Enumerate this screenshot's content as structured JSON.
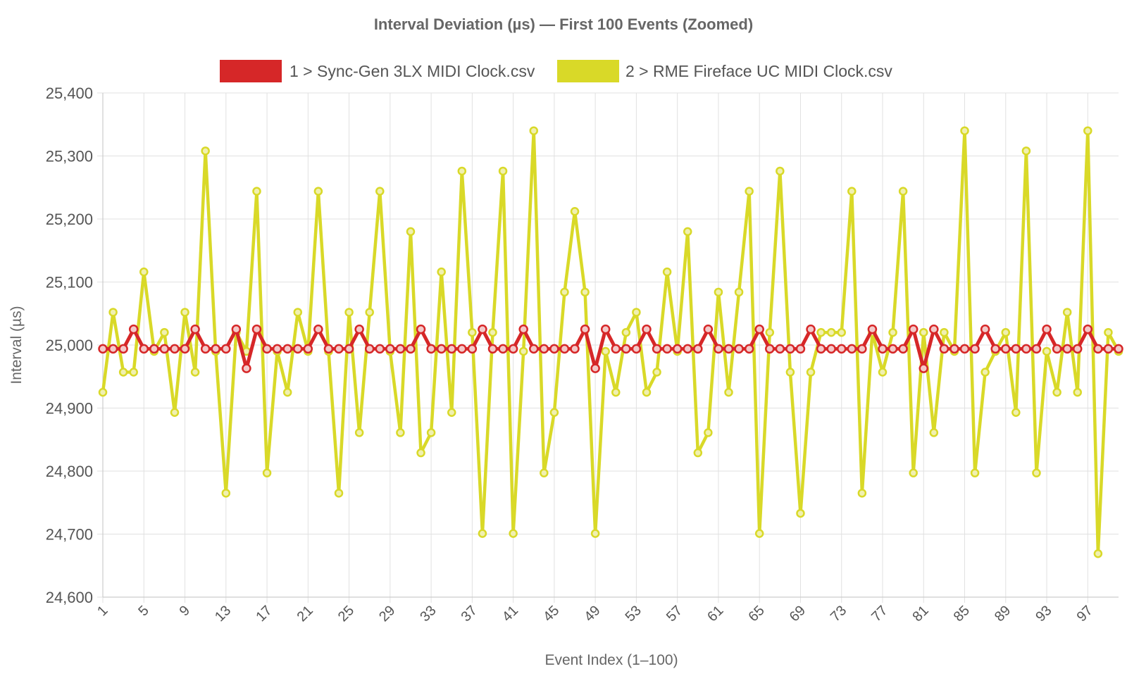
{
  "chart_data": {
    "type": "line",
    "title": "Interval Deviation (µs) — First 100 Events (Zoomed)",
    "xlabel": "Event Index (1–100)",
    "ylabel": "Interval (µs)",
    "ylim": [
      24600,
      25400
    ],
    "yticks": [
      24600,
      24700,
      24800,
      24900,
      25000,
      25100,
      25200,
      25300,
      25400
    ],
    "ytick_labels": [
      "24,600",
      "24,700",
      "24,800",
      "24,900",
      "25,000",
      "25,100",
      "25,200",
      "25,300",
      "25,400"
    ],
    "xlim": [
      1,
      100
    ],
    "xticks": [
      1,
      5,
      9,
      13,
      17,
      21,
      25,
      29,
      33,
      37,
      41,
      45,
      49,
      53,
      57,
      61,
      65,
      69,
      73,
      77,
      81,
      85,
      89,
      93,
      97
    ],
    "grid": true,
    "legend_position": "top-center",
    "series": [
      {
        "name": "1 > Sync-Gen 3LX MIDI Clock.csv",
        "color": "#d62728",
        "values": [
          24994,
          24994,
          24994,
          25025,
          24994,
          24994,
          24994,
          24994,
          24994,
          25025,
          24994,
          24994,
          24994,
          25025,
          24963,
          25025,
          24994,
          24994,
          24994,
          24994,
          24994,
          25025,
          24994,
          24994,
          24994,
          25025,
          24994,
          24994,
          24994,
          24994,
          24994,
          25025,
          24994,
          24994,
          24994,
          24994,
          24994,
          25025,
          24994,
          24994,
          24994,
          25025,
          24994,
          24994,
          24994,
          24994,
          24994,
          25025,
          24963,
          25025,
          24994,
          24994,
          24994,
          25025,
          24994,
          24994,
          24994,
          24994,
          24994,
          25025,
          24994,
          24994,
          24994,
          24994,
          25025,
          24994,
          24994,
          24994,
          24994,
          25025,
          24994,
          24994,
          24994,
          24994,
          24994,
          25025,
          24994,
          24994,
          24994,
          25025,
          24963,
          25025,
          24994,
          24994,
          24994,
          24994,
          25025,
          24994,
          24994,
          24994,
          24994,
          24994,
          25025,
          24994,
          24994,
          24994,
          25025,
          24994,
          24994,
          24994
        ]
      },
      {
        "name": "2 > RME Fireface UC MIDI Clock.csv",
        "color": "#d9d928",
        "values": [
          24925,
          25052,
          24957,
          24957,
          25116,
          24990,
          25020,
          24893,
          25052,
          24957,
          25308,
          24990,
          24765,
          25020,
          24990,
          25244,
          24797,
          24990,
          24925,
          25052,
          24990,
          25244,
          24990,
          24765,
          25052,
          24861,
          25052,
          25244,
          24990,
          24861,
          25180,
          24829,
          24861,
          25116,
          24893,
          25276,
          25020,
          24701,
          25020,
          25276,
          24701,
          24990,
          25340,
          24797,
          24893,
          25084,
          25212,
          25084,
          24701,
          24990,
          24925,
          25020,
          25052,
          24925,
          24957,
          25116,
          24990,
          25180,
          24829,
          24861,
          25084,
          24925,
          25084,
          25244,
          24701,
          25020,
          25276,
          24957,
          24733,
          24957,
          25020,
          25020,
          25020,
          25244,
          24765,
          25020,
          24957,
          25020,
          25244,
          24797,
          25020,
          24861,
          25020,
          24990,
          25340,
          24797,
          24957,
          24990,
          25020,
          24893,
          25308,
          24797,
          24990,
          24925,
          25052,
          24925,
          25340,
          24669,
          25020,
          24990
        ]
      }
    ]
  }
}
